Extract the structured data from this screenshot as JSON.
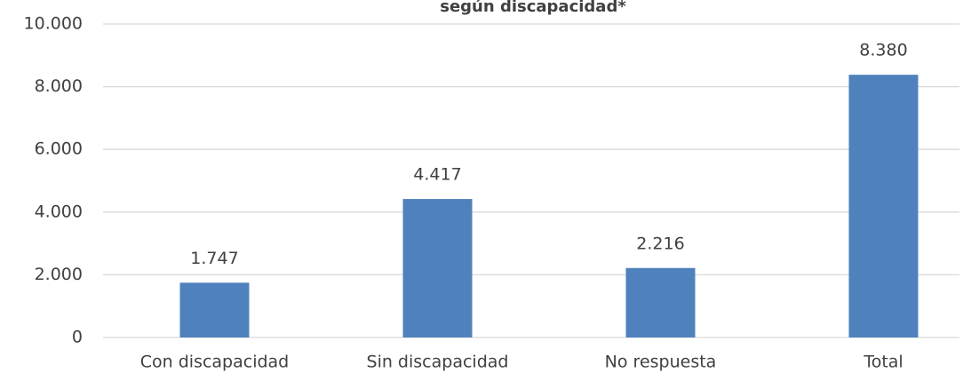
{
  "chart_data": {
    "type": "bar",
    "title": "según discapacidad*",
    "categories": [
      "Con discapacidad",
      "Sin discapacidad",
      "No respuesta",
      "Total"
    ],
    "values": [
      1747,
      4417,
      2216,
      8380
    ],
    "value_labels": [
      "1.747",
      "4.417",
      "2.216",
      "8.380"
    ],
    "color": "#4f81bd",
    "ylim": [
      0,
      10000
    ],
    "yticks": [
      0,
      {
        "value": 2000,
        "label": "2.000"
      },
      {
        "value": 4000,
        "label": "4.000"
      },
      {
        "value": 6000,
        "label": "6.000"
      },
      {
        "value": 8000,
        "label": "8.000"
      },
      {
        "value": 10000,
        "label": "10.000"
      }
    ],
    "grid": true
  }
}
